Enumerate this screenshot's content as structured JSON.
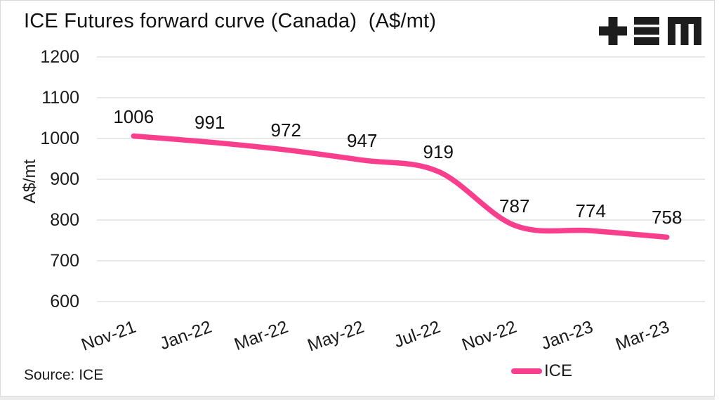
{
  "source_note": "Source: ICE",
  "brand": {
    "logo_icon": "plus-triple-bar-m-logo",
    "logo_color": "#1D1D1D"
  },
  "colors": {
    "accent_pink": "#F83E8C",
    "gridline": "#E8E8E8",
    "text": "#1A1A1A",
    "card_border": "#D9D9D9",
    "bottom_strip": "#ECECEC"
  },
  "legend": {
    "position": "bottom-right",
    "items": [
      {
        "label": "ICE",
        "color": "#F83E8C",
        "swatch": "line"
      }
    ]
  },
  "chart_data": {
    "type": "line",
    "line_style": "spline",
    "title": "ICE Futures forward curve (Canada)  (A$/mt)",
    "xlabel": "",
    "ylabel": "A$/mt",
    "categories": [
      "Nov-21",
      "Jan-22",
      "Mar-22",
      "May-22",
      "Jul-22",
      "Nov-22",
      "Jan-23",
      "Mar-23"
    ],
    "series": [
      {
        "name": "ICE",
        "color": "#F83E8C",
        "values": [
          1006,
          991,
          972,
          947,
          919,
          787,
          774,
          758
        ]
      }
    ],
    "data_labels": true,
    "ylim": [
      600,
      1200
    ],
    "yticks": [
      1200,
      1100,
      1000,
      900,
      800,
      700,
      600
    ],
    "grid": "horizontal",
    "legend_position": "bottom"
  }
}
